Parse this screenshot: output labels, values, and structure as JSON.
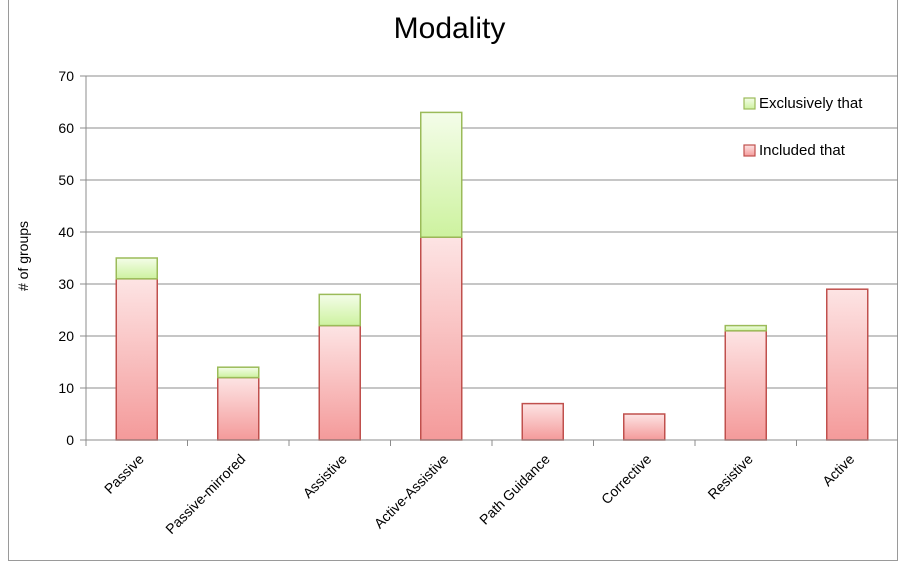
{
  "chart_data": {
    "type": "bar",
    "stacked": true,
    "title": "Modality",
    "xlabel": "",
    "ylabel": "# of groups",
    "ylim": [
      0,
      70
    ],
    "yticks": [
      0,
      10,
      20,
      30,
      40,
      50,
      60,
      70
    ],
    "grid": true,
    "legend_position": "top-right",
    "categories": [
      "Passive",
      "Passive-mirrored",
      "Assistive",
      "Active-Assistive",
      "Path Guidance",
      "Corrective",
      "Resistive",
      "Active"
    ],
    "series": [
      {
        "name": "Included that",
        "color": "#f4a9a9",
        "values": [
          31,
          12,
          22,
          39,
          7,
          5,
          21,
          29
        ]
      },
      {
        "name": "Exclusively that",
        "color": "#d8f5b4",
        "values": [
          4,
          2,
          6,
          24,
          0,
          0,
          1,
          0
        ]
      }
    ],
    "legend_order": [
      "Exclusively that",
      "Included that"
    ]
  }
}
